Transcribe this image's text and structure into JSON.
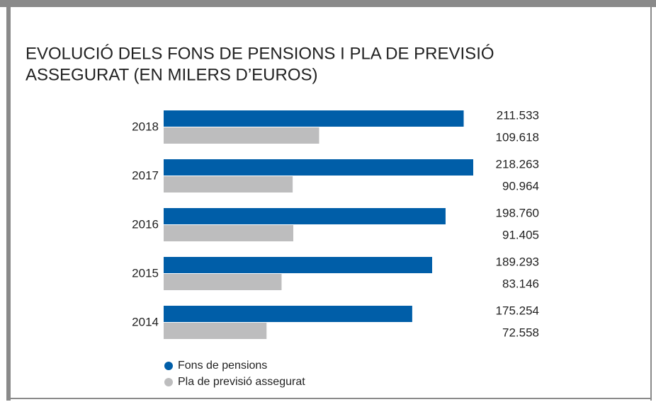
{
  "chart_data": {
    "type": "hbar",
    "title": [
      "EVOLUCIÓ DELS FONS DE PENSIONS I PLA DE PREVISIÓ",
      "ASSEGURAT (EN MILERS D’EUROS)"
    ],
    "categories": [
      "2018",
      "2017",
      "2016",
      "2015",
      "2014"
    ],
    "series": [
      {
        "name": "Fons de pensions",
        "color": "#005ea8",
        "values": [
          211533,
          218263,
          198760,
          189293,
          175254
        ],
        "value_labels": [
          "211.533",
          "218.263",
          "198.760",
          "189.293",
          "175.254"
        ]
      },
      {
        "name": "Pla de previsió assegurat",
        "color": "#bdbdbe",
        "values": [
          109618,
          90964,
          91405,
          83146,
          72558
        ],
        "value_labels": [
          "109.618",
          "90.964",
          "91.405",
          "83.146",
          "72.558"
        ]
      }
    ],
    "legend": "bottom-left"
  }
}
